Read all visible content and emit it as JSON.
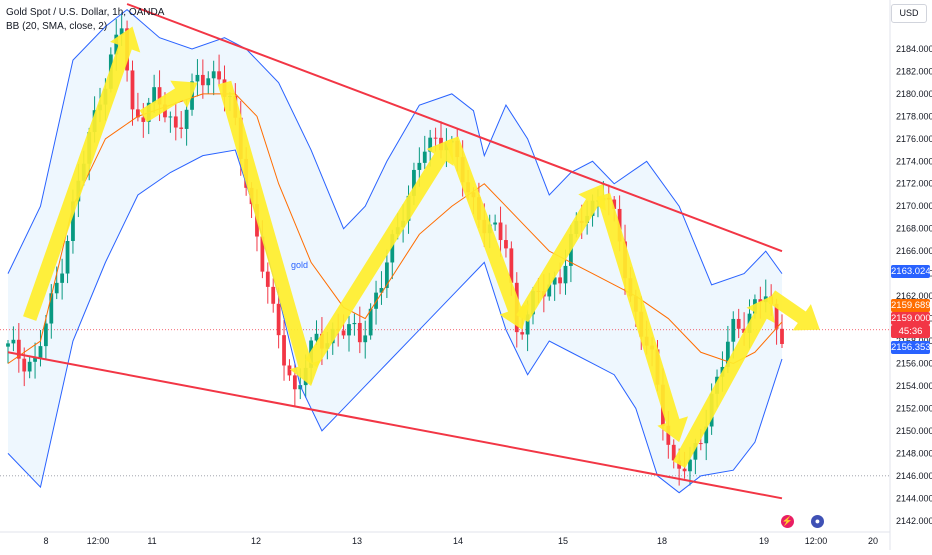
{
  "legend": {
    "symbol": "Gold Spot / U.S. Dollar, 1h, OANDA",
    "indicator": "BB (20, SMA, close, 2)"
  },
  "currency_button": "USD",
  "colors": {
    "up": "#089981",
    "down": "#f23645",
    "arrow": "#ffee2b",
    "band": "#2962ff",
    "basis": "#ff6d00",
    "trendline": "#f23645"
  },
  "price_tags": {
    "upper_band": "2163.024",
    "basis": "2159.689",
    "last_price": "2159.000",
    "countdown": "45:36",
    "lower_band": "2156.353"
  },
  "chart_label": "gold",
  "event_icons": [
    "lightning-icon",
    "us-flag-icon"
  ],
  "chart_data": {
    "type": "candlestick",
    "symbol": "XAUUSD",
    "interval": "1h",
    "ylim": [
      2141,
      2188
    ],
    "y_ticks": [
      "2142.000",
      "2144.000",
      "2146.000",
      "2148.000",
      "2150.000",
      "2152.000",
      "2154.000",
      "2156.000",
      "2158.000",
      "2160.000",
      "2162.000",
      "2164.000",
      "2166.000",
      "2168.000",
      "2170.000",
      "2172.000",
      "2174.000",
      "2176.000",
      "2178.000",
      "2180.000",
      "2182.000",
      "2184.000"
    ],
    "x_ticks": [
      "8",
      "12:00",
      "11",
      "12",
      "13",
      "14",
      "15",
      "18",
      "19",
      "12:00",
      "20"
    ],
    "close_path": [
      [
        0,
        2157.5
      ],
      [
        6,
        2156.0
      ],
      [
        10,
        2163.0
      ],
      [
        14,
        2172.0
      ],
      [
        18,
        2180.0
      ],
      [
        22,
        2186.0
      ],
      [
        24,
        2178.0
      ],
      [
        28,
        2179.5
      ],
      [
        32,
        2177.0
      ],
      [
        36,
        2181.0
      ],
      [
        40,
        2182.0
      ],
      [
        42,
        2179.0
      ],
      [
        46,
        2170.0
      ],
      [
        50,
        2160.0
      ],
      [
        54,
        2153.5
      ],
      [
        58,
        2158.0
      ],
      [
        62,
        2159.0
      ],
      [
        66,
        2158.5
      ],
      [
        70,
        2163.0
      ],
      [
        74,
        2170.0
      ],
      [
        78,
        2175.0
      ],
      [
        82,
        2176.5
      ],
      [
        86,
        2171.0
      ],
      [
        90,
        2168.0
      ],
      [
        93,
        2166.5
      ],
      [
        95,
        2159.0
      ],
      [
        99,
        2162.0
      ],
      [
        103,
        2164.0
      ],
      [
        107,
        2169.0
      ],
      [
        111,
        2171.5
      ],
      [
        114,
        2167.0
      ],
      [
        116,
        2162.0
      ],
      [
        120,
        2156.0
      ],
      [
        124,
        2147.0
      ],
      [
        127,
        2146.5
      ],
      [
        131,
        2153.0
      ],
      [
        135,
        2159.0
      ],
      [
        139,
        2161.0
      ],
      [
        141,
        2162.0
      ],
      [
        143,
        2159.0
      ]
    ],
    "series": [
      {
        "name": "BB upper",
        "values": [
          [
            0,
            2164.0
          ],
          [
            6,
            2170.0
          ],
          [
            12,
            2183.0
          ],
          [
            18,
            2186.0
          ],
          [
            22,
            2187.5
          ],
          [
            28,
            2185.0
          ],
          [
            34,
            2184.0
          ],
          [
            40,
            2185.0
          ],
          [
            44,
            2184.0
          ],
          [
            50,
            2181.0
          ],
          [
            56,
            2175.0
          ],
          [
            62,
            2168.0
          ],
          [
            66,
            2170.0
          ],
          [
            70,
            2174.0
          ],
          [
            76,
            2179.0
          ],
          [
            82,
            2180.0
          ],
          [
            86,
            2178.5
          ],
          [
            88,
            2174.5
          ],
          [
            92,
            2179.0
          ],
          [
            96,
            2176.0
          ],
          [
            100,
            2171.0
          ],
          [
            104,
            2173.0
          ],
          [
            108,
            2174.0
          ],
          [
            112,
            2172.0
          ],
          [
            118,
            2174.0
          ],
          [
            124,
            2170.0
          ],
          [
            130,
            2163.0
          ],
          [
            136,
            2164.0
          ],
          [
            140,
            2166.0
          ],
          [
            143,
            2164.0
          ]
        ]
      },
      {
        "name": "BB basis",
        "values": [
          [
            0,
            2156.0
          ],
          [
            6,
            2158.0
          ],
          [
            12,
            2170.0
          ],
          [
            18,
            2176.0
          ],
          [
            24,
            2178.0
          ],
          [
            30,
            2179.0
          ],
          [
            36,
            2180.0
          ],
          [
            42,
            2180.0
          ],
          [
            46,
            2178.0
          ],
          [
            50,
            2172.0
          ],
          [
            56,
            2165.0
          ],
          [
            62,
            2161.0
          ],
          [
            66,
            2160.0
          ],
          [
            70,
            2163.0
          ],
          [
            76,
            2167.5
          ],
          [
            82,
            2170.0
          ],
          [
            88,
            2172.0
          ],
          [
            92,
            2170.0
          ],
          [
            96,
            2168.0
          ],
          [
            100,
            2166.0
          ],
          [
            104,
            2165.0
          ],
          [
            108,
            2164.0
          ],
          [
            112,
            2163.0
          ],
          [
            116,
            2162.0
          ],
          [
            122,
            2160.0
          ],
          [
            128,
            2157.0
          ],
          [
            134,
            2156.0
          ],
          [
            138,
            2157.0
          ],
          [
            143,
            2159.7
          ]
        ]
      },
      {
        "name": "BB lower",
        "values": [
          [
            0,
            2148.0
          ],
          [
            6,
            2145.0
          ],
          [
            12,
            2158.0
          ],
          [
            18,
            2165.0
          ],
          [
            24,
            2171.0
          ],
          [
            30,
            2173.0
          ],
          [
            36,
            2174.5
          ],
          [
            42,
            2175.0
          ],
          [
            46,
            2169.0
          ],
          [
            50,
            2162.0
          ],
          [
            54,
            2154.0
          ],
          [
            58,
            2150.0
          ],
          [
            62,
            2152.0
          ],
          [
            66,
            2154.0
          ],
          [
            70,
            2156.0
          ],
          [
            76,
            2159.0
          ],
          [
            82,
            2162.0
          ],
          [
            88,
            2165.0
          ],
          [
            92,
            2159.0
          ],
          [
            96,
            2155.0
          ],
          [
            100,
            2158.0
          ],
          [
            104,
            2157.0
          ],
          [
            108,
            2156.0
          ],
          [
            112,
            2155.0
          ],
          [
            116,
            2152.0
          ],
          [
            120,
            2146.0
          ],
          [
            124,
            2144.5
          ],
          [
            128,
            2146.0
          ],
          [
            134,
            2146.5
          ],
          [
            138,
            2149.0
          ],
          [
            143,
            2156.4
          ]
        ]
      }
    ],
    "trendlines": [
      {
        "name": "upper trendline",
        "from": [
          22,
          2188.0
        ],
        "to": [
          143,
          2166.0
        ]
      },
      {
        "name": "lower trendline",
        "from": [
          0,
          2157.0
        ],
        "to": [
          143,
          2144.0
        ]
      }
    ],
    "arrows": [
      {
        "from": [
          4,
          2160.0
        ],
        "to": [
          23,
          2186.0
        ]
      },
      {
        "from": [
          25,
          2178.0
        ],
        "to": [
          35,
          2181.0
        ]
      },
      {
        "from": [
          40,
          2181.0
        ],
        "to": [
          56,
          2154.0
        ]
      },
      {
        "from": [
          56,
          2156.0
        ],
        "to": [
          82,
          2176.0
        ]
      },
      {
        "from": [
          82,
          2176.0
        ],
        "to": [
          95,
          2159.0
        ]
      },
      {
        "from": [
          95,
          2160.0
        ],
        "to": [
          110,
          2172.0
        ]
      },
      {
        "from": [
          110,
          2171.0
        ],
        "to": [
          124,
          2149.0
        ]
      },
      {
        "from": [
          124,
          2147.0
        ],
        "to": [
          141,
          2162.0
        ]
      },
      {
        "from": [
          141,
          2162.0
        ],
        "to": [
          150,
          2159.0
        ]
      }
    ],
    "horizontal_lines": [
      2159.0,
      2146.0
    ]
  }
}
